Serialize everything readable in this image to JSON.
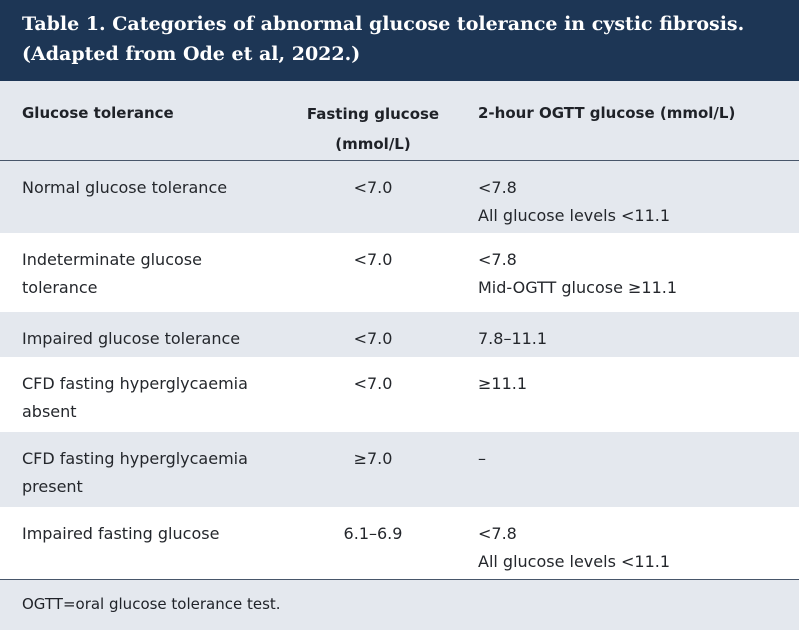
{
  "title": {
    "line1": "Table 1. Categories of abnormal glucose tolerance in cystic fibrosis.",
    "line2": "(Adapted from Ode et al, 2022.)"
  },
  "headers": {
    "col1": "Glucose tolerance",
    "col2_line1": "Fasting glucose",
    "col2_line2": "(mmol/L)",
    "col3": "2-hour OGTT glucose (mmol/L)"
  },
  "rows": [
    {
      "category": [
        "Normal glucose tolerance"
      ],
      "fasting": "<7.0",
      "ogtt": [
        "<7.8",
        "All glucose levels <11.1"
      ]
    },
    {
      "category": [
        "Indeterminate glucose",
        "tolerance"
      ],
      "fasting": "<7.0",
      "ogtt": [
        "<7.8",
        "Mid-OGTT glucose ≥11.1"
      ]
    },
    {
      "category": [
        "Impaired glucose tolerance"
      ],
      "fasting": "<7.0",
      "ogtt": [
        "7.8–11.1"
      ]
    },
    {
      "category": [
        "CFD fasting hyperglycaemia",
        "absent"
      ],
      "fasting": "<7.0",
      "ogtt": [
        "≥11.1"
      ]
    },
    {
      "category": [
        "CFD fasting hyperglycaemia",
        "present"
      ],
      "fasting": "≥7.0",
      "ogtt": [
        "–"
      ]
    },
    {
      "category": [
        "Impaired fasting glucose"
      ],
      "fasting": "6.1–6.9",
      "ogtt": [
        "<7.8",
        "All glucose levels <11.1"
      ]
    }
  ],
  "footnote": "OGTT=oral glucose tolerance test."
}
